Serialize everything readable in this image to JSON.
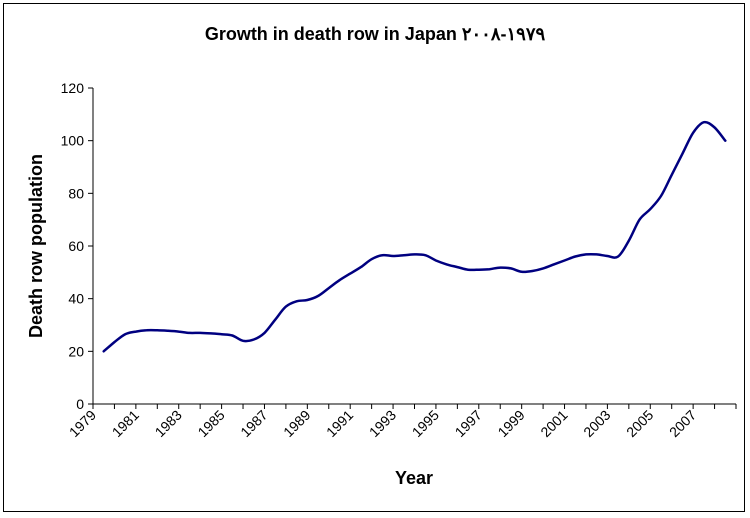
{
  "chart_data": {
    "type": "line",
    "title": "Growth in death row in Japan ١٩٧٩-٢٠٠٨",
    "xlabel": "Year",
    "ylabel": "Death row population",
    "ylim": [
      0,
      120
    ],
    "yticks": [
      0,
      20,
      40,
      60,
      80,
      100,
      120
    ],
    "xlim": [
      1979,
      2009
    ],
    "xticks": [
      "1979",
      "1981",
      "1983",
      "1985",
      "1987",
      "1989",
      "1991",
      "1993",
      "1995",
      "1997",
      "1999",
      "2001",
      "2003",
      "2005",
      "2007"
    ],
    "grid": false,
    "legend": "none",
    "line_color": "#000080",
    "series": [
      {
        "x": [
          1979.5,
          1980,
          1980.5,
          1981,
          1981.5,
          1982,
          1982.5,
          1983,
          1983.5,
          1984,
          1984.5,
          1985,
          1985.5,
          1986,
          1986.5,
          1987,
          1987.5,
          1988,
          1988.5,
          1989,
          1989.5,
          1990,
          1990.5,
          1991,
          1991.5,
          1992,
          1992.5,
          1993,
          1993.5,
          1994,
          1994.5,
          1995,
          1995.5,
          1996,
          1996.5,
          1997,
          1997.5,
          1998,
          1998.5,
          1999,
          1999.5,
          2000,
          2000.5,
          2001,
          2001.5,
          2002,
          2002.5,
          2003,
          2003.5,
          2004,
          2004.5,
          2005,
          2005.5,
          2006,
          2006.5,
          2007,
          2007.5,
          2008,
          2008.5
        ],
        "values": [
          20,
          23.5,
          26.5,
          27.5,
          28,
          28,
          27.8,
          27.5,
          27,
          27,
          26.8,
          26.5,
          26,
          24,
          24.5,
          27,
          32,
          37,
          39,
          39.5,
          41,
          44,
          47,
          49.5,
          52,
          55,
          56.5,
          56.2,
          56.5,
          56.8,
          56.5,
          54.5,
          53,
          52,
          51,
          51,
          51.2,
          51.8,
          51.5,
          50.2,
          50.5,
          51.5,
          53,
          54.5,
          56,
          56.8,
          56.8,
          56.2,
          56,
          62,
          70,
          74,
          79,
          87,
          95,
          103,
          107,
          105,
          100
        ]
      }
    ]
  }
}
